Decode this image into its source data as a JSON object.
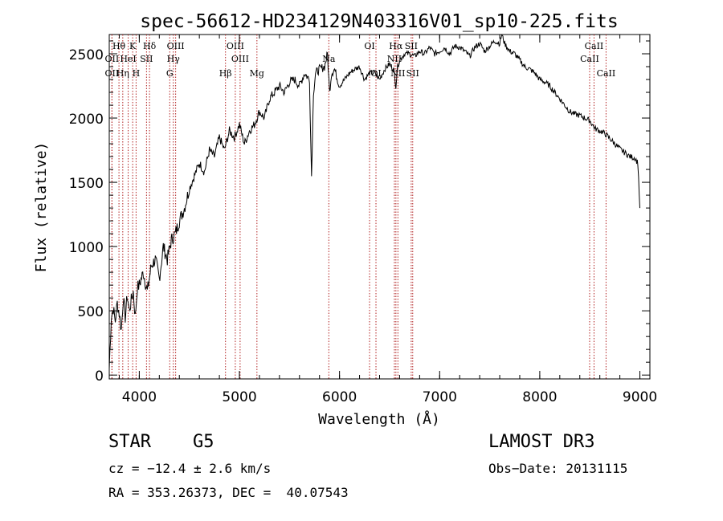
{
  "chart_data": {
    "type": "line",
    "title": "spec-56612-HD234129N403316V01_sp10-225.fits",
    "xlabel": "Wavelength (Å)",
    "ylabel": "Flux (relative)",
    "xlim": [
      3700,
      9100
    ],
    "ylim": [
      -30,
      2650
    ],
    "xticks": [
      4000,
      5000,
      6000,
      7000,
      8000,
      9000
    ],
    "yticks": [
      0,
      500,
      1000,
      1500,
      2000,
      2500
    ],
    "series": [
      {
        "name": "flux",
        "x": [
          3700,
          3720,
          3740,
          3760,
          3780,
          3800,
          3820,
          3840,
          3860,
          3880,
          3900,
          3920,
          3940,
          3960,
          3980,
          4000,
          4040,
          4080,
          4120,
          4160,
          4200,
          4240,
          4280,
          4320,
          4360,
          4400,
          4450,
          4500,
          4550,
          4600,
          4650,
          4700,
          4750,
          4800,
          4850,
          4900,
          4950,
          5000,
          5050,
          5100,
          5150,
          5200,
          5250,
          5300,
          5350,
          5400,
          5450,
          5500,
          5550,
          5600,
          5650,
          5700,
          5720,
          5740,
          5760,
          5800,
          5850,
          5880,
          5900,
          5920,
          5950,
          6000,
          6050,
          6100,
          6150,
          6200,
          6250,
          6300,
          6350,
          6400,
          6450,
          6500,
          6540,
          6563,
          6580,
          6600,
          6650,
          6700,
          6750,
          6800,
          6850,
          6900,
          6950,
          7000,
          7050,
          7100,
          7150,
          7200,
          7250,
          7300,
          7350,
          7400,
          7450,
          7500,
          7550,
          7600,
          7620,
          7650,
          7700,
          7750,
          7800,
          7850,
          7900,
          7950,
          8000,
          8050,
          8100,
          8150,
          8200,
          8250,
          8300,
          8350,
          8400,
          8450,
          8500,
          8550,
          8600,
          8650,
          8700,
          8750,
          8800,
          8850,
          8900,
          8950,
          8980,
          9000
        ],
        "y": [
          50,
          450,
          520,
          420,
          560,
          480,
          350,
          600,
          450,
          620,
          500,
          580,
          650,
          450,
          680,
          700,
          800,
          650,
          850,
          900,
          750,
          1000,
          900,
          1050,
          1100,
          1200,
          1300,
          1450,
          1550,
          1650,
          1580,
          1750,
          1700,
          1850,
          1750,
          1900,
          1850,
          1950,
          1800,
          1900,
          1950,
          2050,
          2000,
          2150,
          2200,
          2250,
          2200,
          2280,
          2300,
          2250,
          2350,
          2300,
          1550,
          2200,
          2350,
          2380,
          2400,
          2500,
          2200,
          2350,
          2380,
          2250,
          2300,
          2350,
          2380,
          2400,
          2300,
          2350,
          2350,
          2300,
          2380,
          2420,
          2380,
          2250,
          2400,
          2450,
          2500,
          2500,
          2480,
          2520,
          2500,
          2550,
          2500,
          2520,
          2550,
          2500,
          2560,
          2550,
          2520,
          2480,
          2550,
          2580,
          2520,
          2560,
          2600,
          2580,
          2650,
          2580,
          2520,
          2500,
          2450,
          2400,
          2380,
          2350,
          2300,
          2280,
          2250,
          2200,
          2150,
          2100,
          2050,
          2030,
          2020,
          2000,
          1980,
          1920,
          1900,
          1880,
          1840,
          1800,
          1760,
          1730,
          1700,
          1690,
          1650,
          1300
        ]
      }
    ],
    "spectral_lines": [
      {
        "label": "Hθ",
        "x": 3797,
        "row": 1
      },
      {
        "label": "OII",
        "x": 3727,
        "row": 2
      },
      {
        "label": "OII",
        "x": 3727,
        "row": 3
      },
      {
        "label": "K",
        "x": 3934,
        "row": 1
      },
      {
        "label": "HeI",
        "x": 3889,
        "row": 2
      },
      {
        "label": "Hη",
        "x": 3835,
        "row": 3
      },
      {
        "label": "H",
        "x": 3968,
        "row": 3
      },
      {
        "label": "Hδ",
        "x": 4102,
        "row": 1
      },
      {
        "label": "SII",
        "x": 4072,
        "row": 2
      },
      {
        "label": "OIII",
        "x": 4363,
        "row": 1
      },
      {
        "label": "Hγ",
        "x": 4340,
        "row": 2
      },
      {
        "label": "G",
        "x": 4304,
        "row": 3
      },
      {
        "label": "OIII",
        "x": 4959,
        "row": 1
      },
      {
        "label": "OIII",
        "x": 5007,
        "row": 2
      },
      {
        "label": "Hβ",
        "x": 4861,
        "row": 3
      },
      {
        "label": "Mg",
        "x": 5175,
        "row": 3
      },
      {
        "label": "Na",
        "x": 5893,
        "row": 2
      },
      {
        "label": "OI",
        "x": 6300,
        "row": 1
      },
      {
        "label": "OI",
        "x": 6364,
        "row": 3
      },
      {
        "label": "Hα",
        "x": 6563,
        "row": 1
      },
      {
        "label": "SII",
        "x": 6716,
        "row": 1
      },
      {
        "label": "NII",
        "x": 6548,
        "row": 2
      },
      {
        "label": "NII",
        "x": 6583,
        "row": 3
      },
      {
        "label": "SII",
        "x": 6731,
        "row": 3
      },
      {
        "label": "CaII",
        "x": 8542,
        "row": 1
      },
      {
        "label": "CaII",
        "x": 8498,
        "row": 2
      },
      {
        "label": "CaII",
        "x": 8662,
        "row": 3
      }
    ]
  },
  "info": {
    "class": "STAR",
    "subclass": "G5",
    "survey": "LAMOST DR3",
    "redshift": "cz = −12.4 ± 2.6 km/s",
    "obs_date": "Obs−Date: 20131115",
    "coords": "RA = 353.26373, DEC =  40.07543"
  }
}
